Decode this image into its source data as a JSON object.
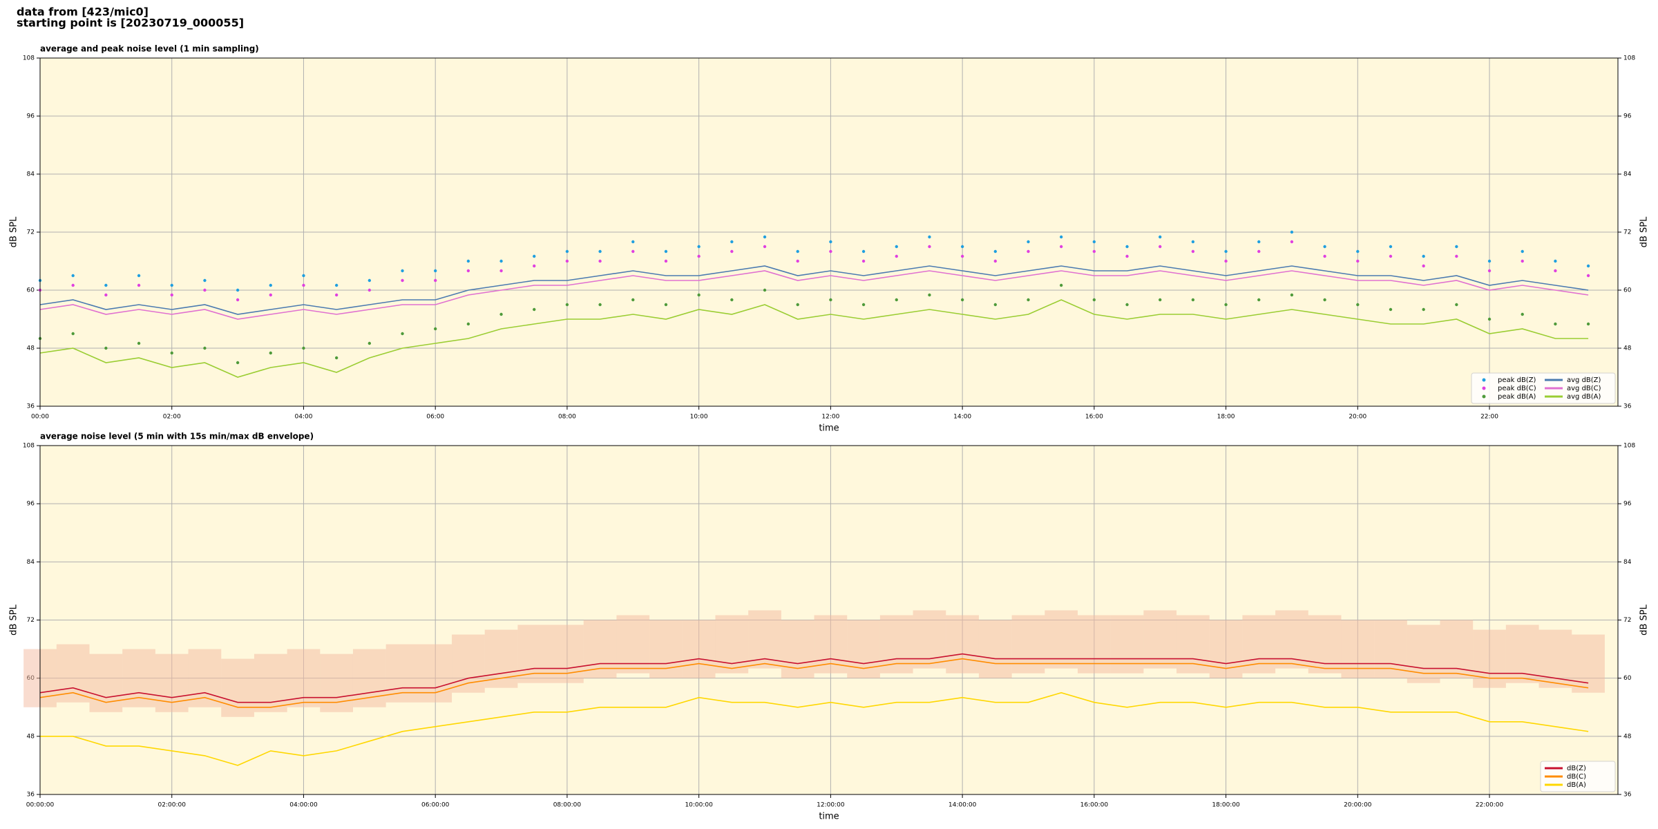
{
  "title_lines": [
    "data from [423/mic0]",
    "starting point is [20230719_000055]"
  ],
  "chart_data": [
    {
      "type": "line",
      "title": "average and peak noise level (1 min sampling)",
      "xlabel": "time",
      "ylabel": "dB SPL",
      "y2label": "dB SPL",
      "background": "#fff8dc",
      "grid": true,
      "legend": "lower right",
      "legend_columns": 2,
      "xlim": [
        0,
        23.95
      ],
      "ylim": [
        36,
        108
      ],
      "yticks": [
        36,
        48,
        60,
        72,
        84,
        96,
        108
      ],
      "xticks": [
        {
          "value": 0,
          "label": "00:00"
        },
        {
          "value": 2,
          "label": "02:00"
        },
        {
          "value": 4,
          "label": "04:00"
        },
        {
          "value": 6,
          "label": "06:00"
        },
        {
          "value": 8,
          "label": "08:00"
        },
        {
          "value": 10,
          "label": "10:00"
        },
        {
          "value": 12,
          "label": "12:00"
        },
        {
          "value": 14,
          "label": "14:00"
        },
        {
          "value": 16,
          "label": "16:00"
        },
        {
          "value": 18,
          "label": "18:00"
        },
        {
          "value": 20,
          "label": "20:00"
        },
        {
          "value": 22,
          "label": "22:00"
        }
      ],
      "x": [
        0,
        0.5,
        1,
        1.5,
        2,
        2.5,
        3,
        3.5,
        4,
        4.5,
        5,
        5.5,
        6,
        6.5,
        7,
        7.5,
        8,
        8.5,
        9,
        9.5,
        10,
        10.5,
        11,
        11.5,
        12,
        12.5,
        13,
        13.5,
        14,
        14.5,
        15,
        15.5,
        16,
        16.5,
        17,
        17.5,
        18,
        18.5,
        19,
        19.5,
        20,
        20.5,
        21,
        21.5,
        22,
        22.5,
        23,
        23.5
      ],
      "series": [
        {
          "name": "peak dB(Z)",
          "style": "scatter",
          "color": "#1f9fe0",
          "values": [
            62,
            63,
            61,
            63,
            61,
            62,
            60,
            61,
            63,
            61,
            62,
            64,
            64,
            66,
            66,
            67,
            68,
            68,
            70,
            68,
            69,
            70,
            71,
            68,
            70,
            68,
            69,
            71,
            69,
            68,
            70,
            71,
            70,
            69,
            71,
            70,
            68,
            70,
            72,
            69,
            68,
            69,
            67,
            69,
            66,
            68,
            66,
            65
          ]
        },
        {
          "name": "peak dB(C)",
          "style": "scatter",
          "color": "#e040e0",
          "values": [
            60,
            61,
            59,
            61,
            59,
            60,
            58,
            59,
            61,
            59,
            60,
            62,
            62,
            64,
            64,
            65,
            66,
            66,
            68,
            66,
            67,
            68,
            69,
            66,
            68,
            66,
            67,
            69,
            67,
            66,
            68,
            69,
            68,
            67,
            69,
            68,
            66,
            68,
            70,
            67,
            66,
            67,
            65,
            67,
            64,
            66,
            64,
            63
          ]
        },
        {
          "name": "peak dB(A)",
          "style": "scatter",
          "color": "#4e9a3a",
          "values": [
            50,
            51,
            48,
            49,
            47,
            48,
            45,
            47,
            48,
            46,
            49,
            51,
            52,
            53,
            55,
            56,
            57,
            57,
            58,
            57,
            59,
            58,
            60,
            57,
            58,
            57,
            58,
            59,
            58,
            57,
            58,
            61,
            58,
            57,
            58,
            58,
            57,
            58,
            59,
            58,
            57,
            56,
            56,
            57,
            54,
            55,
            53,
            53
          ]
        },
        {
          "name": "avg dB(Z)",
          "style": "line",
          "color": "#4a7ab0",
          "values": [
            57,
            58,
            56,
            57,
            56,
            57,
            55,
            56,
            57,
            56,
            57,
            58,
            58,
            60,
            61,
            62,
            62,
            63,
            64,
            63,
            63,
            64,
            65,
            63,
            64,
            63,
            64,
            65,
            64,
            63,
            64,
            65,
            64,
            64,
            65,
            64,
            63,
            64,
            65,
            64,
            63,
            63,
            62,
            63,
            61,
            62,
            61,
            60
          ]
        },
        {
          "name": "avg dB(C)",
          "style": "line",
          "color": "#e070d0",
          "values": [
            56,
            57,
            55,
            56,
            55,
            56,
            54,
            55,
            56,
            55,
            56,
            57,
            57,
            59,
            60,
            61,
            61,
            62,
            63,
            62,
            62,
            63,
            64,
            62,
            63,
            62,
            63,
            64,
            63,
            62,
            63,
            64,
            63,
            63,
            64,
            63,
            62,
            63,
            64,
            63,
            62,
            62,
            61,
            62,
            60,
            61,
            60,
            59
          ]
        },
        {
          "name": "avg dB(A)",
          "style": "line",
          "color": "#9acd32",
          "values": [
            47,
            48,
            45,
            46,
            44,
            45,
            42,
            44,
            45,
            43,
            46,
            48,
            49,
            50,
            52,
            53,
            54,
            54,
            55,
            54,
            56,
            55,
            57,
            54,
            55,
            54,
            55,
            56,
            55,
            54,
            55,
            58,
            55,
            54,
            55,
            55,
            54,
            55,
            56,
            55,
            54,
            53,
            53,
            54,
            51,
            52,
            50,
            50
          ]
        }
      ]
    },
    {
      "type": "line",
      "title": "average noise level (5 min with 15s min/max dB envelope)",
      "xlabel": "time",
      "ylabel": "dB SPL",
      "y2label": "dB SPL",
      "background": "#fff8dc",
      "grid": true,
      "legend": "lower right",
      "legend_columns": 1,
      "xlim": [
        0,
        23.95
      ],
      "ylim": [
        36,
        108
      ],
      "yticks": [
        36,
        48,
        60,
        72,
        84,
        96,
        108
      ],
      "xticks": [
        {
          "value": 0,
          "label": "00:00:00"
        },
        {
          "value": 2,
          "label": "02:00:00"
        },
        {
          "value": 4,
          "label": "04:00:00"
        },
        {
          "value": 6,
          "label": "06:00:00"
        },
        {
          "value": 8,
          "label": "08:00:00"
        },
        {
          "value": 10,
          "label": "10:00:00"
        },
        {
          "value": 12,
          "label": "12:00:00"
        },
        {
          "value": 14,
          "label": "14:00:00"
        },
        {
          "value": 16,
          "label": "16:00:00"
        },
        {
          "value": 18,
          "label": "18:00:00"
        },
        {
          "value": 20,
          "label": "20:00:00"
        },
        {
          "value": 22,
          "label": "22:00:00"
        }
      ],
      "x": [
        0,
        0.5,
        1,
        1.5,
        2,
        2.5,
        3,
        3.5,
        4,
        4.5,
        5,
        5.5,
        6,
        6.5,
        7,
        7.5,
        8,
        8.5,
        9,
        9.5,
        10,
        10.5,
        11,
        11.5,
        12,
        12.5,
        13,
        13.5,
        14,
        14.5,
        15,
        15.5,
        16,
        16.5,
        17,
        17.5,
        18,
        18.5,
        19,
        19.5,
        20,
        20.5,
        21,
        21.5,
        22,
        22.5,
        23,
        23.5
      ],
      "envelope_color": "#f4b9a0",
      "envelope_min": [
        54,
        55,
        53,
        54,
        53,
        54,
        52,
        53,
        54,
        53,
        54,
        55,
        55,
        57,
        58,
        59,
        59,
        60,
        61,
        60,
        60,
        61,
        62,
        60,
        61,
        60,
        61,
        62,
        61,
        60,
        61,
        62,
        61,
        61,
        62,
        61,
        60,
        61,
        62,
        61,
        60,
        60,
        59,
        60,
        58,
        59,
        58,
        57
      ],
      "envelope_max": [
        66,
        67,
        65,
        66,
        65,
        66,
        64,
        65,
        66,
        65,
        66,
        67,
        67,
        69,
        70,
        71,
        71,
        72,
        73,
        72,
        72,
        73,
        74,
        72,
        73,
        72,
        73,
        74,
        73,
        72,
        73,
        74,
        73,
        73,
        74,
        73,
        72,
        73,
        74,
        73,
        72,
        72,
        71,
        72,
        70,
        71,
        70,
        69
      ],
      "series": [
        {
          "name": "dB(Z)",
          "style": "line",
          "color": "#c8102e",
          "values": [
            57,
            58,
            56,
            57,
            56,
            57,
            55,
            55,
            56,
            56,
            57,
            58,
            58,
            60,
            61,
            62,
            62,
            63,
            63,
            63,
            64,
            63,
            64,
            63,
            64,
            63,
            64,
            64,
            65,
            64,
            64,
            64,
            64,
            64,
            64,
            64,
            63,
            64,
            64,
            63,
            63,
            63,
            62,
            62,
            61,
            61,
            60,
            59
          ]
        },
        {
          "name": "dB(C)",
          "style": "line",
          "color": "#ff8c00",
          "values": [
            56,
            57,
            55,
            56,
            55,
            56,
            54,
            54,
            55,
            55,
            56,
            57,
            57,
            59,
            60,
            61,
            61,
            62,
            62,
            62,
            63,
            62,
            63,
            62,
            63,
            62,
            63,
            63,
            64,
            63,
            63,
            63,
            63,
            63,
            63,
            63,
            62,
            63,
            63,
            62,
            62,
            62,
            61,
            61,
            60,
            60,
            59,
            58
          ]
        },
        {
          "name": "dB(A)",
          "style": "line",
          "color": "#ffd700",
          "values": [
            48,
            48,
            46,
            46,
            45,
            44,
            42,
            45,
            44,
            45,
            47,
            49,
            50,
            51,
            52,
            53,
            53,
            54,
            54,
            54,
            56,
            55,
            55,
            54,
            55,
            54,
            55,
            55,
            56,
            55,
            55,
            57,
            55,
            54,
            55,
            55,
            54,
            55,
            55,
            54,
            54,
            53,
            53,
            53,
            51,
            51,
            50,
            49
          ]
        }
      ]
    }
  ]
}
